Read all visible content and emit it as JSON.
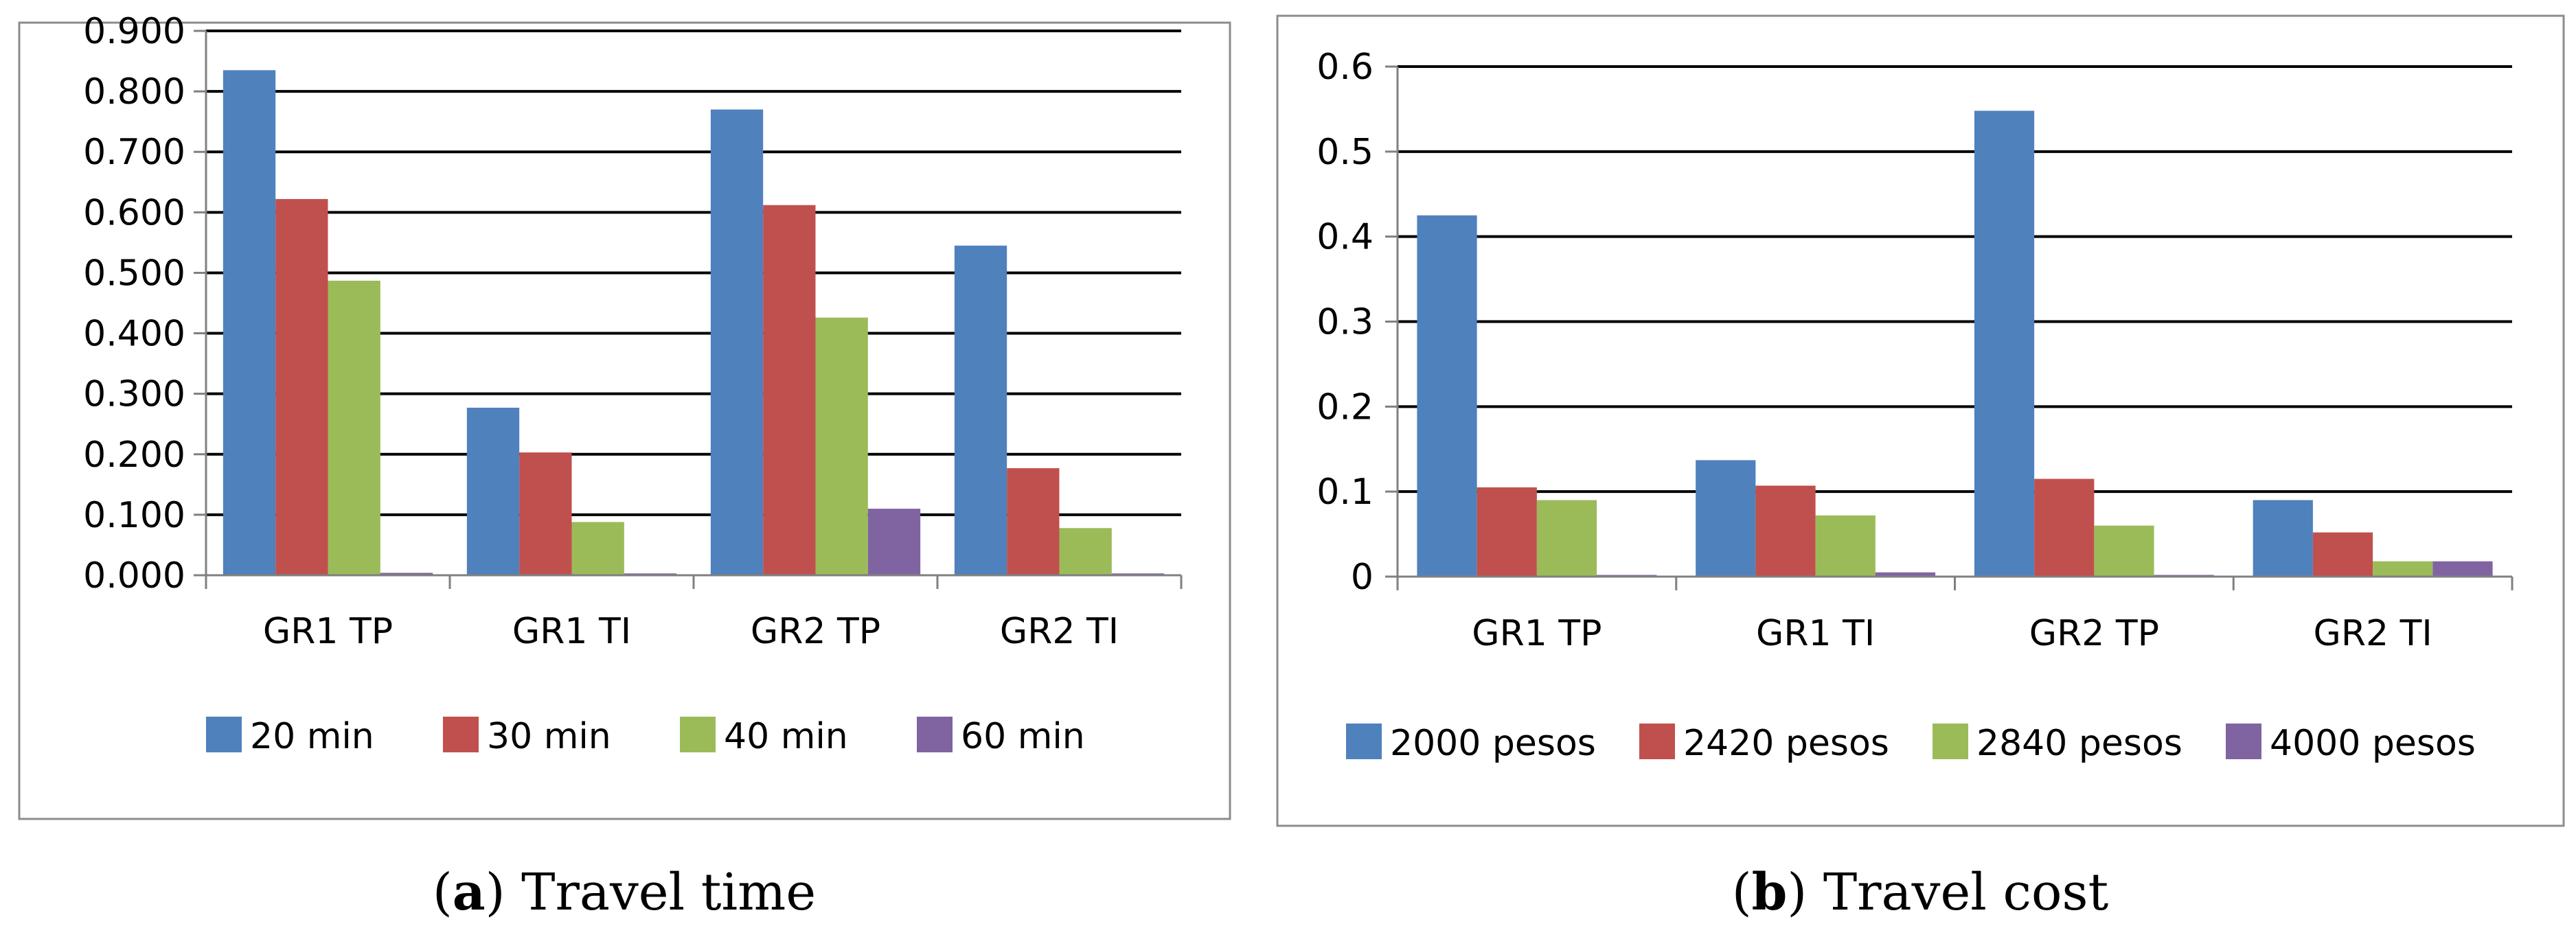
{
  "chart_data": [
    {
      "type": "bar",
      "caption_letter": "a",
      "caption_text": "Travel time",
      "categories": [
        "GR1 TP",
        "GR1 TI",
        "GR2 TP",
        "GR2 TI"
      ],
      "series": [
        {
          "name": "20 min",
          "color": "#4F81BD",
          "values": [
            0.835,
            0.277,
            0.77,
            0.545
          ]
        },
        {
          "name": "30 min",
          "color": "#C0504D",
          "values": [
            0.622,
            0.203,
            0.612,
            0.177
          ]
        },
        {
          "name": "40 min",
          "color": "#9BBB59",
          "values": [
            0.487,
            0.088,
            0.426,
            0.078
          ]
        },
        {
          "name": "60 min",
          "color": "#8064A2",
          "values": [
            0.004,
            0.003,
            0.11,
            0.003
          ]
        }
      ],
      "ylim": [
        0,
        0.9
      ],
      "yticks": [
        "0.000",
        "0.100",
        "0.200",
        "0.300",
        "0.400",
        "0.500",
        "0.600",
        "0.700",
        "0.800",
        "0.900"
      ],
      "grid": true,
      "legend": "bottom"
    },
    {
      "type": "bar",
      "caption_letter": "b",
      "caption_text": "Travel cost",
      "categories": [
        "GR1 TP",
        "GR1 TI",
        "GR2 TP",
        "GR2 TI"
      ],
      "series": [
        {
          "name": "2000 pesos",
          "color": "#4F81BD",
          "values": [
            0.425,
            0.137,
            0.548,
            0.09
          ]
        },
        {
          "name": "2420 pesos",
          "color": "#C0504D",
          "values": [
            0.105,
            0.107,
            0.115,
            0.052
          ]
        },
        {
          "name": "2840 pesos",
          "color": "#9BBB59",
          "values": [
            0.09,
            0.072,
            0.06,
            0.018
          ]
        },
        {
          "name": "4000 pesos",
          "color": "#8064A2",
          "values": [
            0.002,
            0.005,
            0.002,
            0.018
          ]
        }
      ],
      "ylim": [
        0,
        0.6
      ],
      "yticks": [
        "0",
        "0.1",
        "0.2",
        "0.3",
        "0.4",
        "0.5",
        "0.6"
      ],
      "grid": true,
      "legend": "bottom"
    }
  ]
}
